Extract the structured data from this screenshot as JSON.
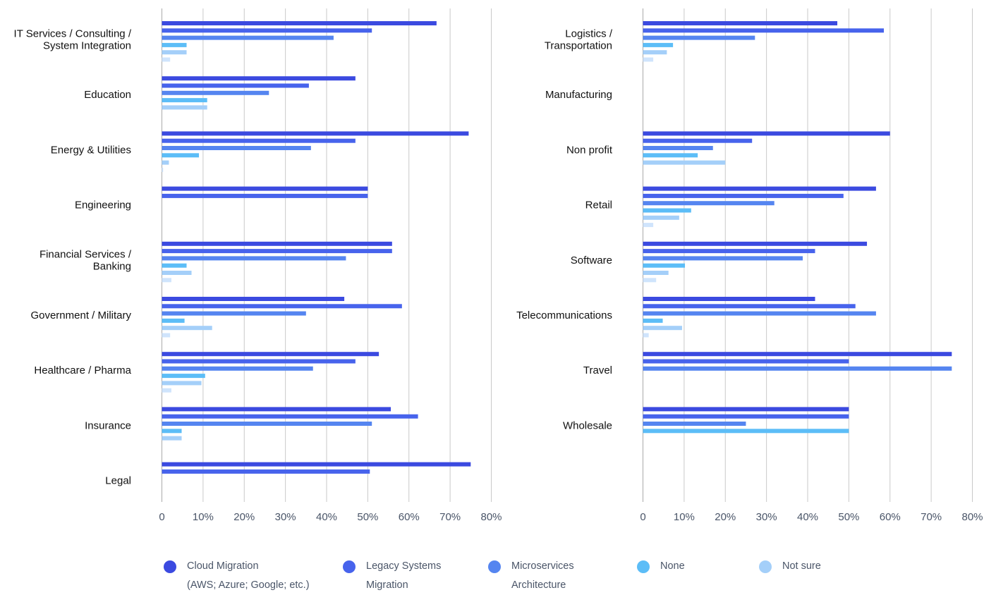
{
  "chart_data": [
    {
      "type": "bar",
      "orientation": "horizontal",
      "categories": [
        [
          "IT Services / Consulting /",
          "System Integration"
        ],
        [
          "Education"
        ],
        [
          "Energy & Utilities"
        ],
        [
          "Engineering"
        ],
        [
          "Financial Services /",
          "Banking"
        ],
        [
          "Government / Military"
        ],
        [
          "Healthcare / Pharma"
        ],
        [
          "Insurance"
        ],
        [
          "Legal"
        ]
      ],
      "series": [
        {
          "name": "Cloud Migration (AWS; Azure; Google; etc.)",
          "values": [
            66.7,
            47,
            74.5,
            50,
            55.9,
            44.3,
            52.7,
            55.6,
            75
          ]
        },
        {
          "name": "Legacy Systems Migration",
          "values": [
            51,
            35.7,
            47,
            50,
            55.9,
            58.3,
            47,
            62.2,
            50.5
          ]
        },
        {
          "name": "Microservices Architecture",
          "values": [
            41.7,
            26,
            36.2,
            null,
            44.7,
            35,
            36.7,
            51,
            null
          ]
        },
        {
          "name": "None",
          "values": [
            6,
            11,
            9,
            null,
            6,
            5.5,
            10.5,
            4.8,
            null
          ]
        },
        {
          "name": "Not sure",
          "values": [
            6,
            11,
            1.7,
            null,
            7.2,
            12.2,
            9.6,
            4.8,
            null
          ]
        },
        {
          "name": "",
          "values": [
            2,
            null,
            0.3,
            null,
            2.3,
            2,
            2.3,
            null,
            null
          ]
        }
      ],
      "xlim": [
        0,
        80
      ],
      "x_ticks": [
        "0",
        "10%",
        "20%",
        "30%",
        "40%",
        "50%",
        "60%",
        "70%",
        "80%"
      ],
      "grid": true
    },
    {
      "type": "bar",
      "orientation": "horizontal",
      "categories": [
        [
          "Logistics /",
          "Transportation"
        ],
        [
          "Manufacturing"
        ],
        [
          "Non profit"
        ],
        [
          "Retail"
        ],
        [
          "Software"
        ],
        [
          "Telecommunications"
        ],
        [
          "Travel"
        ],
        [
          "Wholesale"
        ]
      ],
      "series": [
        {
          "name": "Cloud Migration (AWS; Azure; Google; etc.)",
          "values": [
            47.2,
            null,
            60,
            56.6,
            54.4,
            41.8,
            75,
            50
          ]
        },
        {
          "name": "Legacy Systems Migration",
          "values": [
            58.5,
            null,
            26.5,
            48.7,
            41.8,
            51.6,
            50,
            50
          ]
        },
        {
          "name": "Microservices Architecture",
          "values": [
            27.2,
            null,
            17,
            31.9,
            38.8,
            56.6,
            75,
            25
          ]
        },
        {
          "name": "None",
          "values": [
            7.3,
            null,
            13.3,
            11.7,
            10.2,
            4.8,
            null,
            50
          ]
        },
        {
          "name": "Not sure",
          "values": [
            5.8,
            null,
            20,
            8.8,
            6.2,
            9.5,
            null,
            null
          ]
        },
        {
          "name": "",
          "values": [
            2.5,
            null,
            null,
            2.5,
            3.2,
            1.4,
            null,
            null
          ]
        }
      ],
      "xlim": [
        0,
        80
      ],
      "x_ticks": [
        "0",
        "10%",
        "20%",
        "30%",
        "40%",
        "50%",
        "60%",
        "70%",
        "80%"
      ],
      "grid": true
    }
  ],
  "colors": [
    "#3b4ae0",
    "#4763ec",
    "#5585f0",
    "#5cbdf7",
    "#a4cff9",
    "#cfe4fc"
  ],
  "legend": [
    {
      "lines": [
        "Cloud Migration",
        "(AWS; Azure; Google; etc.)"
      ],
      "color": "#3b4ae0",
      "icon": "circle-icon"
    },
    {
      "lines": [
        "Legacy Systems",
        "Migration"
      ],
      "color": "#4763ec",
      "icon": "circle-icon"
    },
    {
      "lines": [
        "Microservices",
        "Architecture"
      ],
      "color": "#5585f0",
      "icon": "circle-icon"
    },
    {
      "lines": [
        "None"
      ],
      "color": "#5cbdf7",
      "icon": "circle-icon"
    },
    {
      "lines": [
        "Not sure"
      ],
      "color": "#a4cff9",
      "icon": "circle-icon"
    }
  ]
}
